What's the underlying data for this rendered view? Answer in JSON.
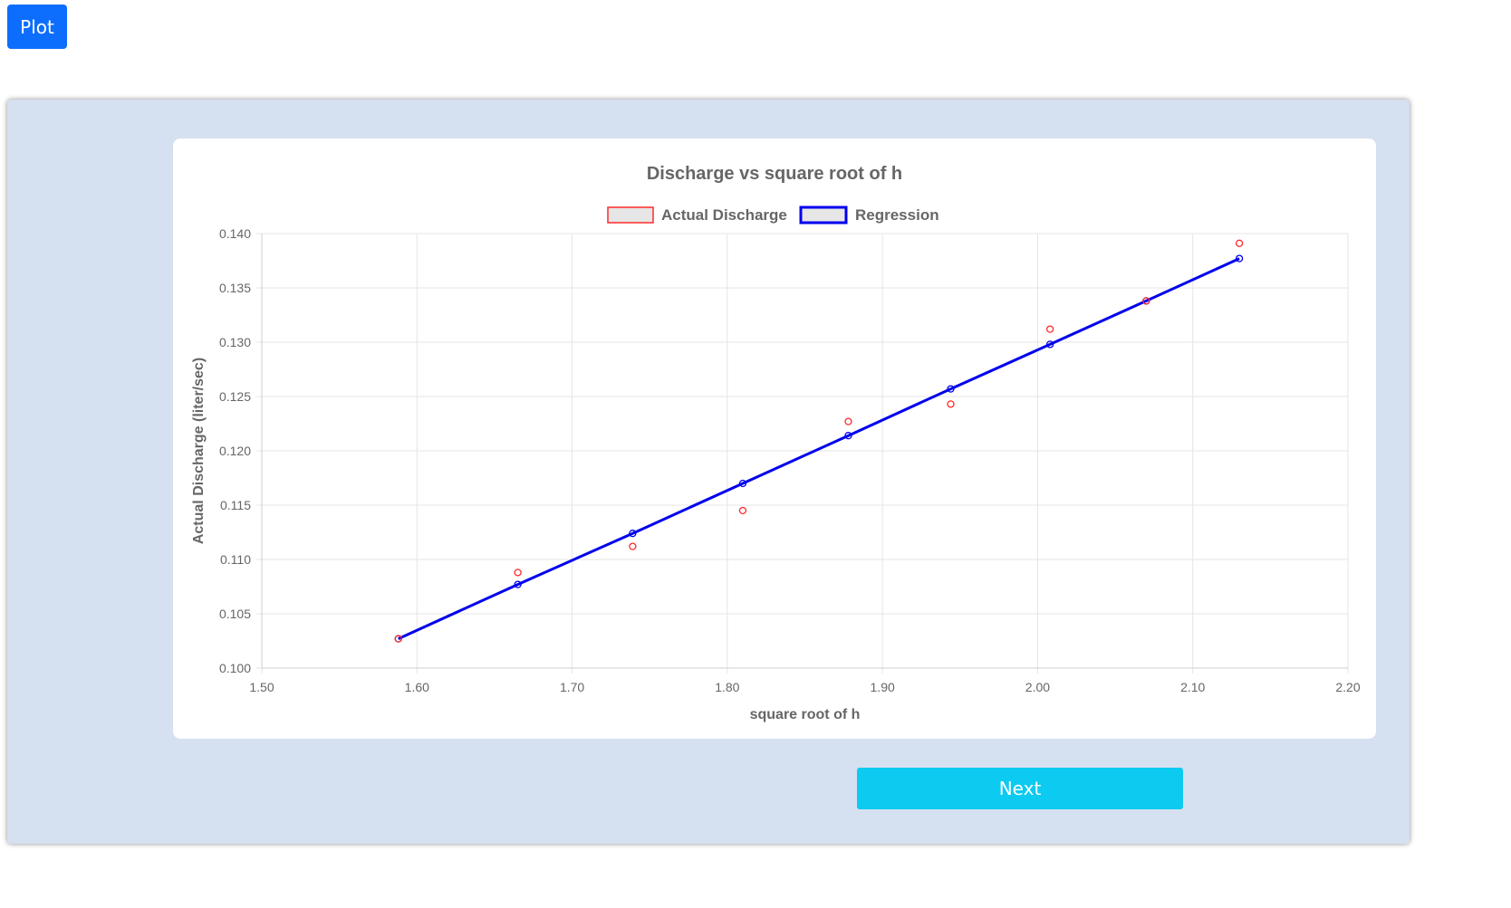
{
  "toolbar": {
    "plot_label": "Plot"
  },
  "footer": {
    "next_label": "Next"
  },
  "colors": {
    "plot_button": "#0d6efd",
    "next_button": "#0dcaf0",
    "panel_background": "#d5e0f0",
    "actual_series": "#ff2a2a",
    "regression_series": "#0000ee",
    "grid": "#e5e5e5",
    "text": "#666666"
  },
  "chart_data": {
    "type": "scatter",
    "title": "Discharge vs square root of h",
    "xlabel": "square root of h",
    "ylabel": "Actual Discharge (liter/sec)",
    "xlim": [
      1.5,
      2.2
    ],
    "ylim": [
      0.1,
      0.14
    ],
    "x_ticks": [
      "1.50",
      "1.60",
      "1.70",
      "1.80",
      "1.90",
      "2.00",
      "2.10",
      "2.20"
    ],
    "y_ticks": [
      "0.100",
      "0.105",
      "0.110",
      "0.115",
      "0.120",
      "0.125",
      "0.130",
      "0.135",
      "0.140"
    ],
    "grid": true,
    "legend_position": "top",
    "series": [
      {
        "name": "Actual Discharge",
        "style": "points",
        "color": "#ff2a2a",
        "x": [
          1.588,
          1.665,
          1.739,
          1.81,
          1.878,
          1.944,
          2.008,
          2.07,
          2.13
        ],
        "y": [
          0.1027,
          0.1088,
          0.1112,
          0.1145,
          0.1227,
          0.1243,
          0.1312,
          0.1338,
          0.1391
        ]
      },
      {
        "name": "Regression",
        "style": "line",
        "color": "#0000ee",
        "x": [
          1.588,
          1.665,
          1.739,
          1.81,
          1.878,
          1.944,
          2.008,
          2.07,
          2.13
        ],
        "y": [
          0.1027,
          0.1077,
          0.1124,
          0.117,
          0.1214,
          0.1257,
          0.1298,
          0.1338,
          0.1377
        ]
      }
    ]
  }
}
